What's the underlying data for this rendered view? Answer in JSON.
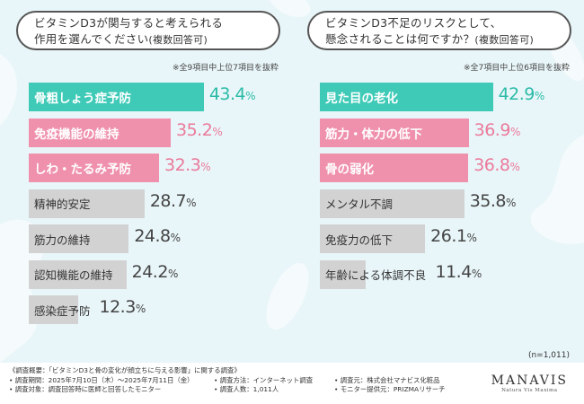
{
  "left_panel": {
    "title_line1": "ビタミンD3が関与すると考えられる",
    "title_line2": "作用を選んでください",
    "title_suffix": "(複数回答可)",
    "note": "※全9項目中上位7項目を抜粋"
  },
  "right_panel": {
    "title_line1": "ビタミンD3不足のリスクとして、",
    "title_line2": "懸念されることは何ですか？",
    "title_suffix": "(複数回答可)",
    "note": "※全7項目中上位6項目を抜粋"
  },
  "n_label": "(n=1,011)",
  "chart_data": [
    {
      "type": "bar",
      "orientation": "horizontal",
      "categories": [
        "骨粗しょう症予防",
        "免疫機能の維持",
        "しわ・たるみ予防",
        "精神的安定",
        "筋力の維持",
        "認知機能の維持",
        "感染症予防"
      ],
      "values": [
        43.4,
        35.2,
        32.3,
        28.7,
        24.8,
        24.2,
        12.3
      ],
      "unit": "%",
      "highlight": [
        "teal",
        "pink",
        "pink",
        "grey",
        "grey",
        "grey",
        "grey"
      ]
    },
    {
      "type": "bar",
      "orientation": "horizontal",
      "categories": [
        "見た目の老化",
        "筋力・体力の低下",
        "骨の弱化",
        "メンタル不調",
        "免疫力の低下",
        "年齢による体調不良"
      ],
      "values": [
        42.9,
        36.9,
        36.8,
        35.8,
        26.1,
        11.4
      ],
      "unit": "%",
      "highlight": [
        "teal",
        "pink",
        "pink",
        "grey",
        "grey",
        "grey"
      ]
    }
  ],
  "colors": {
    "teal": "#3fcab7",
    "pink": "#ef91ad",
    "grey": "#d2d2d2"
  },
  "footer": {
    "col1": [
      "《調査概要：「ビタミンD3と骨の変化が顔立ちに与える影響」に関する調査》",
      "• 調査期間：2025年7月10日（木）〜2025年7月11日（金）",
      "• 調査対象：調査回答時に医師と回答したモニター"
    ],
    "col2": [
      "• 調査方法：インターネット調査",
      "• 調査人数：1,011人"
    ],
    "col3": [
      "• 調査元：株式会社マナビス化粧品",
      "• モニター提供元：PRIZMAリサーチ"
    ],
    "logo": "MANAVIS",
    "logo_sub": "Natura Vis Maxima"
  }
}
